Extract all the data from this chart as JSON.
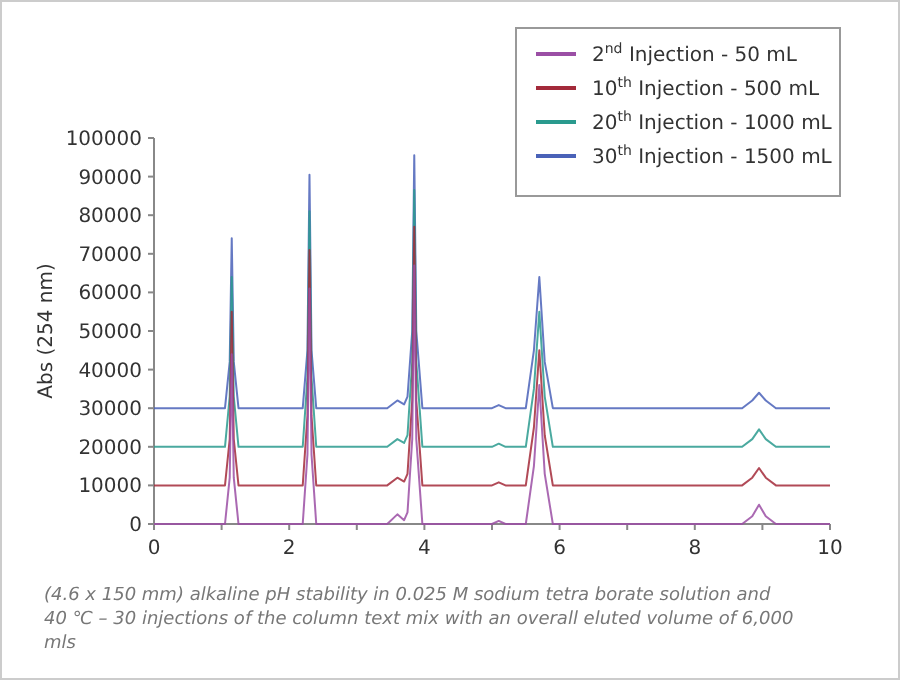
{
  "chart_data": {
    "type": "line",
    "ylabel": "Abs (254 nm)",
    "x": [
      0,
      1.05,
      1.12,
      1.15,
      1.18,
      1.25,
      2.2,
      2.27,
      2.3,
      2.33,
      2.4,
      3.45,
      3.6,
      3.7,
      3.75,
      3.82,
      3.85,
      3.88,
      3.97,
      5.0,
      5.1,
      5.2,
      5.5,
      5.62,
      5.7,
      5.78,
      5.9,
      8.7,
      8.85,
      8.95,
      9.05,
      9.2,
      10
    ],
    "series": [
      {
        "name": "2$^{nd}$ Injection - 50 mL",
        "color": "#9b4fa5",
        "values": [
          0,
          0,
          12000,
          44000,
          12000,
          0,
          0,
          18000,
          61000,
          18000,
          0,
          0,
          2500,
          1000,
          3000,
          22000,
          67000,
          22000,
          0,
          0,
          800,
          0,
          0,
          15000,
          36000,
          13000,
          0,
          0,
          2000,
          5000,
          2000,
          0,
          0
        ]
      },
      {
        "name": "10$^{th}$ Injection - 500 mL",
        "color": "#a32a3a",
        "values": [
          10000,
          10000,
          22000,
          55000,
          22000,
          10000,
          10000,
          28000,
          71000,
          28000,
          10000,
          10000,
          12000,
          11000,
          13000,
          32000,
          77000,
          32000,
          10000,
          10000,
          10800,
          10000,
          10000,
          25000,
          45000,
          23000,
          10000,
          10000,
          12000,
          14500,
          12000,
          10000,
          10000
        ]
      },
      {
        "name": "20$^{th}$ Injection - 1000 mL",
        "color": "#2a9a8e",
        "values": [
          20000,
          20000,
          33000,
          64000,
          33000,
          20000,
          20000,
          38000,
          81000,
          38000,
          20000,
          20000,
          22000,
          21000,
          23000,
          42000,
          86500,
          42000,
          20000,
          20000,
          20800,
          20000,
          20000,
          35000,
          55000,
          33000,
          20000,
          20000,
          22000,
          24500,
          22000,
          20000,
          20000
        ]
      },
      {
        "name": "30$^{th}$ Injection - 1500 mL",
        "color": "#4a62b8",
        "values": [
          30000,
          30000,
          42000,
          74000,
          42000,
          30000,
          30000,
          45000,
          90500,
          45000,
          30000,
          30000,
          32000,
          31000,
          33000,
          50000,
          95500,
          50000,
          30000,
          30000,
          30800,
          30000,
          30000,
          45000,
          64000,
          42000,
          30000,
          30000,
          32000,
          34000,
          32000,
          30000,
          30000
        ]
      }
    ],
    "xlim": [
      0,
      10
    ],
    "xticks": [
      0,
      {
        "value": 1,
        "label": null
      },
      2,
      {
        "value": 3,
        "label": null
      },
      4,
      {
        "value": 5,
        "label": null
      },
      6,
      {
        "value": 7,
        "label": null
      },
      8,
      {
        "value": 9,
        "label": null
      },
      10
    ],
    "ylim": [
      0,
      100000
    ],
    "yticks": [
      0,
      10000,
      20000,
      30000,
      40000,
      50000,
      60000,
      70000,
      80000,
      90000,
      100000
    ],
    "grid": false,
    "legend": "top right",
    "marker": "none",
    "line_style": "solid",
    "annotations": [
      "(4.6 x 150 mm) alkaline pH stability in 0.025 M sodium tetra borate solution and 40 ℃ – 30 injections of the column text mix with an overall eluted volume of 6,000 mls"
    ]
  }
}
